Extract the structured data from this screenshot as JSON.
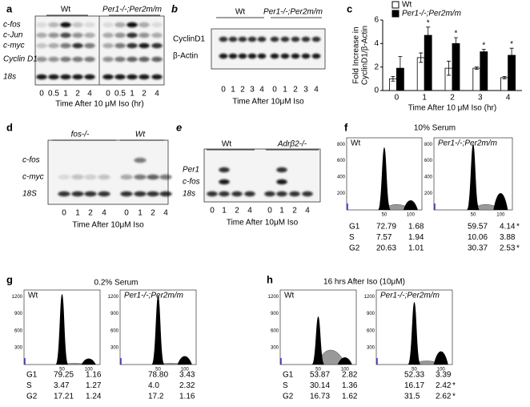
{
  "panels": {
    "a": {
      "label": "a",
      "groups": [
        "Wt",
        "Per1-/-;Per2m/m"
      ],
      "rows": [
        "c-fos",
        "c-Jun",
        "c-myc",
        "Cyclin D1",
        "18s"
      ],
      "lanes": [
        "0",
        "0.5",
        "1",
        "2",
        "4",
        "0",
        "0.5",
        "1",
        "2",
        "4"
      ],
      "xlabel": "Time After 10 μM Iso (hr)"
    },
    "b": {
      "label": "b",
      "groups": [
        "Wt",
        "Per1-/-;Per2m/m"
      ],
      "rows": [
        "CyclinD1",
        "β-Actin"
      ],
      "lanes": [
        "0",
        "1",
        "2",
        "3",
        "4",
        "0",
        "1",
        "2",
        "3",
        "4"
      ],
      "xlabel": "Time After 10μM Iso"
    },
    "c": {
      "label": "c"
    },
    "d": {
      "label": "d",
      "groups": [
        "fos-/-",
        "Wt"
      ],
      "rows": [
        "c-fos",
        "c-myc",
        "18S"
      ],
      "lanes": [
        "0",
        "1",
        "2",
        "4",
        "0",
        "1",
        "2",
        "4"
      ],
      "xlabel": "Time After 10μM Iso"
    },
    "e": {
      "label": "e",
      "groups": [
        "Wt",
        "Adrβ2-/-"
      ],
      "rows": [
        "Per1",
        "c-fos",
        "18s"
      ],
      "lanes": [
        "0",
        "1",
        "2",
        "4",
        "0",
        "1",
        "2",
        "4"
      ],
      "xlabel": "Time After 10μM Iso"
    },
    "f": {
      "label": "f",
      "title": "10% Serum",
      "plots": [
        "Wt",
        "Per1-/-;Per2m/m"
      ],
      "yticks": [
        "200",
        "400",
        "600",
        "800"
      ],
      "xticks": [
        "50",
        "100"
      ],
      "table": [
        [
          "G1",
          "72.79",
          "1.68",
          "59.57",
          "4.14",
          "*"
        ],
        [
          "S",
          "7.57",
          "1.94",
          "10.06",
          "3.88"
        ],
        [
          "G2",
          "20.63",
          "1.01",
          "30.37",
          "2.53",
          "*"
        ]
      ]
    },
    "g": {
      "label": "g",
      "title": "0.2% Serum",
      "plots": [
        "Wt",
        "Per1-/-;Per2m/m"
      ],
      "yticks": [
        "300",
        "600",
        "900",
        "1200"
      ],
      "xticks": [
        "50",
        "100"
      ],
      "table": [
        [
          "G1",
          "79.25",
          "1.16",
          "78.80",
          "3.43"
        ],
        [
          "S",
          "3.47",
          "1.27",
          "4.0",
          "2.32"
        ],
        [
          "G2",
          "17.21",
          "1.24",
          "17.2",
          "1.16"
        ]
      ]
    },
    "h": {
      "label": "h",
      "title": "16 hrs After Iso (10μM)",
      "plots": [
        "Wt",
        "Per1-/-;Per2m/m"
      ],
      "yticks": [
        "300",
        "600",
        "900",
        "1200"
      ],
      "xticks": [
        "50",
        "100"
      ],
      "table": [
        [
          "G1",
          "53.87",
          "2.82",
          "52.33",
          "3.39"
        ],
        [
          "S",
          "30.14",
          "1.36",
          "16.17",
          "2.42",
          "*"
        ],
        [
          "G2",
          "16.73",
          "1.62",
          "31.5",
          "2.62",
          "*"
        ]
      ]
    }
  },
  "chart_data": {
    "type": "bar",
    "xlabel": "Time After 10 μM Iso (hr)",
    "ylabel": [
      "Fold Increase in",
      "CyclinD1/β-Actin"
    ],
    "categories": [
      "0",
      "1",
      "2",
      "3",
      "4"
    ],
    "series": [
      {
        "name": "Wt",
        "color": "#ffffff",
        "values": [
          1.0,
          2.8,
          1.9,
          1.9,
          1.1
        ],
        "errors": [
          0.2,
          0.4,
          0.6,
          0.1,
          0.1
        ]
      },
      {
        "name": "Per1-/-;Per2m/m",
        "color": "#000000",
        "values": [
          1.9,
          4.7,
          4.0,
          3.3,
          3.0
        ],
        "errors": [
          1.0,
          0.7,
          0.5,
          0.2,
          0.6
        ]
      }
    ],
    "annotations": [
      {
        "text": "*",
        "x": "1"
      },
      {
        "text": "*",
        "x": "2"
      },
      {
        "text": "*",
        "x": "3"
      },
      {
        "text": "*",
        "x": "4"
      }
    ],
    "ylim": [
      0,
      6
    ],
    "yticks": [
      0,
      2,
      4,
      6
    ],
    "annotation_color": "#e8401c"
  }
}
